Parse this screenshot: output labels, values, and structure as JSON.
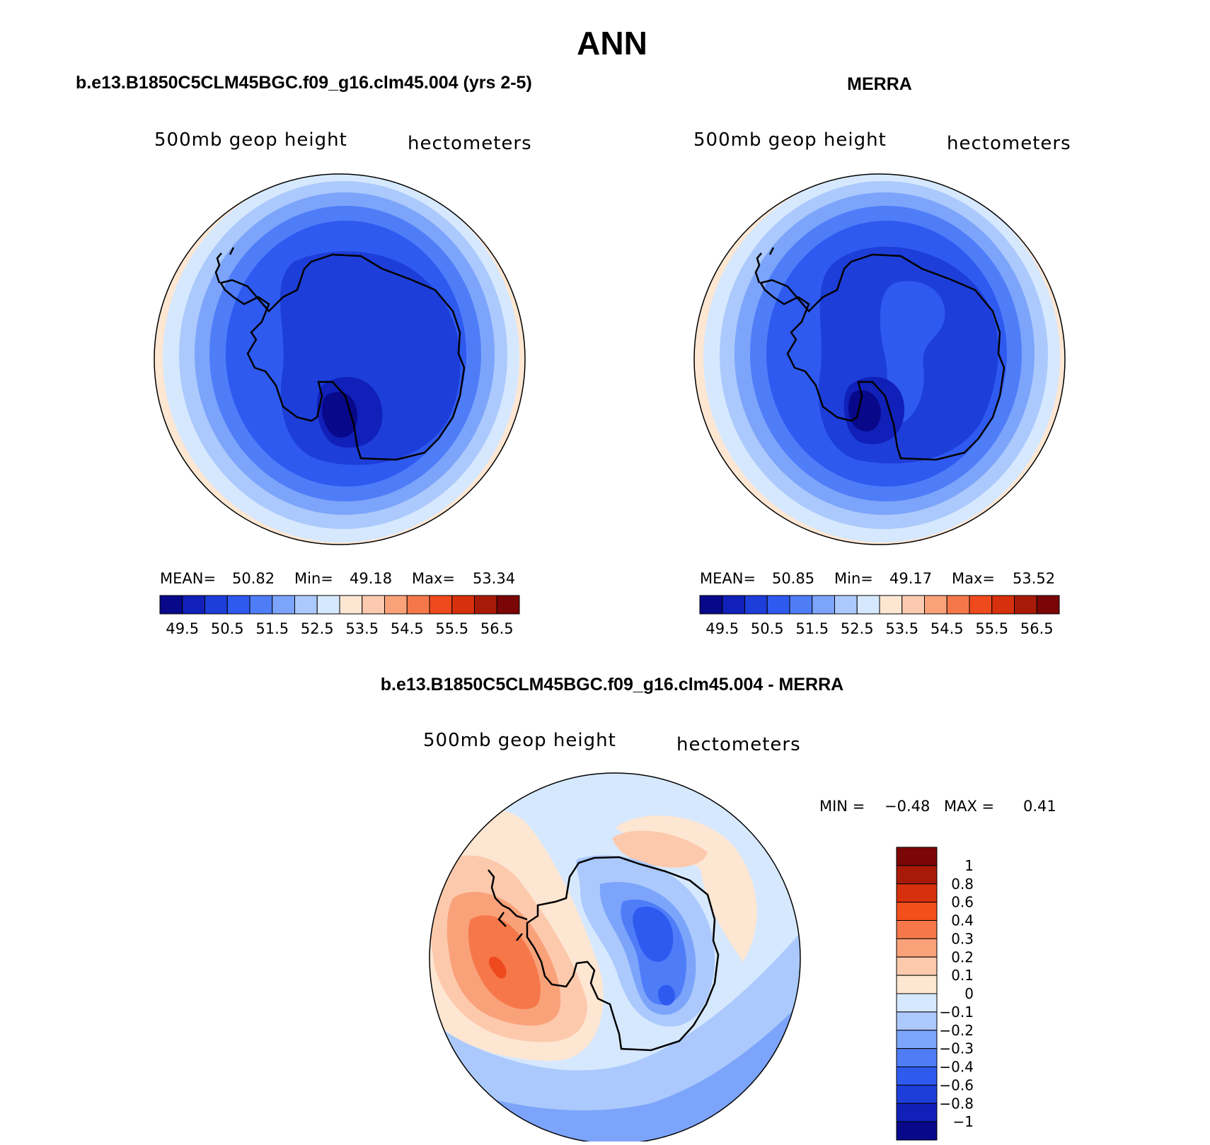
{
  "page": {
    "title": "ANN"
  },
  "panels": [
    {
      "id": "model",
      "header": "b.e13.B1850C5CLM45BGC.f09_g16.clm45.004 (yrs 2-5)",
      "variable": "500mb geop height",
      "units": "hectometers",
      "stats": {
        "mean_label": "MEAN=",
        "mean": "50.82",
        "min_label": "Min=",
        "min": "49.18",
        "max_label": "Max=",
        "max": "53.34"
      }
    },
    {
      "id": "obs",
      "header": "MERRA",
      "variable": "500mb geop height",
      "units": "hectometers",
      "stats": {
        "mean_label": "MEAN=",
        "mean": "50.85",
        "min_label": "Min=",
        "min": "49.17",
        "max_label": "Max=",
        "max": "53.52"
      }
    }
  ],
  "field_colorbar": {
    "colors": [
      "#08088a",
      "#1020b8",
      "#1d3ed8",
      "#2f5af0",
      "#4f7df8",
      "#7ca4fa",
      "#abc9fc",
      "#d6e8fe",
      "#fde6d2",
      "#fccab0",
      "#f9a27a",
      "#f6784a",
      "#ef4a1e",
      "#d6300c",
      "#a81a08",
      "#7a0606"
    ],
    "labels": [
      "49.5",
      "50.5",
      "51.5",
      "52.5",
      "53.5",
      "54.5",
      "55.5",
      "56.5"
    ]
  },
  "difference_panel": {
    "header": "b.e13.B1850C5CLM45BGC.f09_g16.clm45.004 - MERRA",
    "variable": "500mb geop height",
    "units": "hectometers",
    "stats": {
      "min_label": "MIN =",
      "min": "−0.48",
      "max_label": "MAX =",
      "max": "0.41"
    },
    "colorbar": {
      "colors": [
        "#7a0606",
        "#a81a08",
        "#d6300c",
        "#f24f1c",
        "#f6784a",
        "#f9a27a",
        "#fcc9ad",
        "#fde6d2",
        "#d6e8fe",
        "#abc9fc",
        "#7ca4fa",
        "#4f7df8",
        "#2f5af0",
        "#1d3ed8",
        "#1020b8",
        "#08088a"
      ],
      "labels": [
        "1",
        "0.8",
        "0.6",
        "0.4",
        "0.3",
        "0.2",
        "0.1",
        "0",
        "−0.1",
        "−0.2",
        "−0.3",
        "−0.4",
        "−0.6",
        "−0.8",
        "−1"
      ]
    }
  },
  "map_colors": {
    "ring_outer": "#fde6d2",
    "ring_1": "#d6e8fe",
    "ring_2": "#abc9fc",
    "ring_3": "#7ca4fa",
    "ring_4": "#4f7df8",
    "ring_5": "#2f5af0",
    "ring_6": "#1d3ed8",
    "ring_7": "#1020b8",
    "ring_8": "#08088a"
  }
}
